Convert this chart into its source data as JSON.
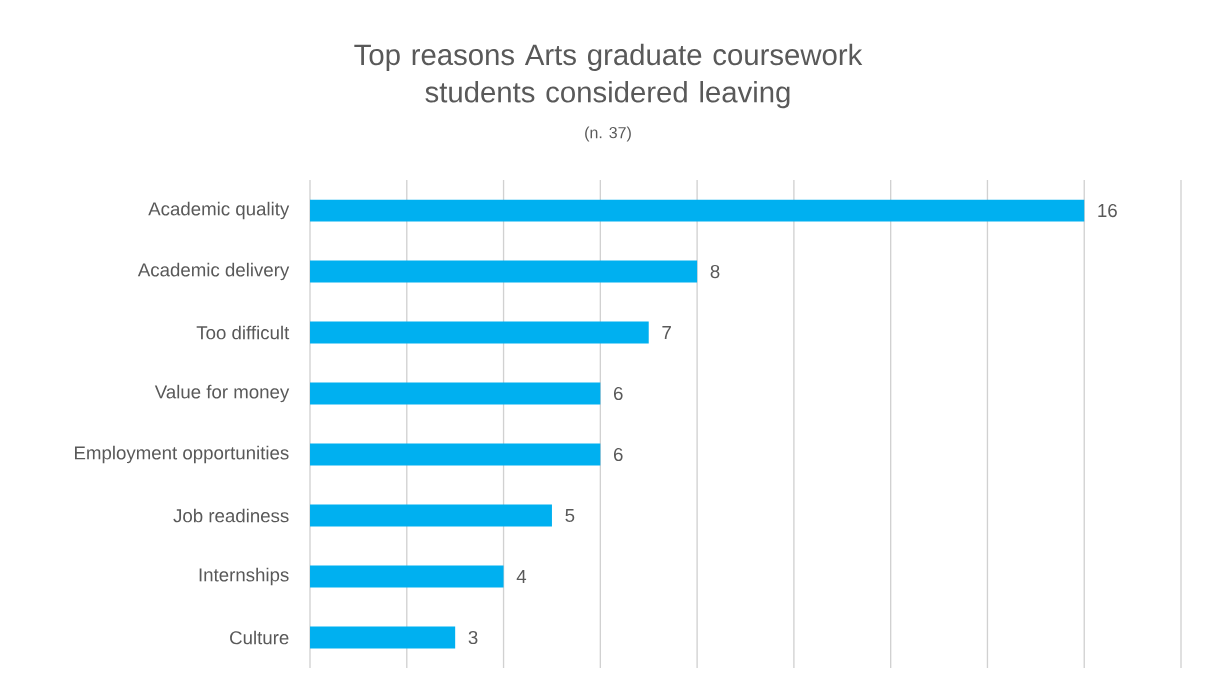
{
  "chart_data": {
    "type": "bar",
    "orientation": "horizontal",
    "title": "Top reasons Arts graduate coursework students considered leaving",
    "subtitle": "(n. 37)",
    "categories": [
      "Academic quality",
      "Academic delivery",
      "Too difficult",
      "Value for money",
      "Employment opportunities",
      "Job readiness",
      "Internships",
      "Culture"
    ],
    "values": [
      16,
      8,
      7,
      6,
      6,
      5,
      4,
      3
    ],
    "color": "#00b0f0",
    "xlim": [
      0,
      18
    ],
    "xticks": [
      {
        "value": 0,
        "label": null
      },
      {
        "value": 2,
        "label": null
      },
      {
        "value": 4,
        "label": null
      },
      {
        "value": 6,
        "label": null
      },
      {
        "value": 8,
        "label": null
      },
      {
        "value": 10,
        "label": null
      },
      {
        "value": 12,
        "label": null
      },
      {
        "value": 14,
        "label": null
      },
      {
        "value": 16,
        "label": null
      },
      {
        "value": 18,
        "label": null
      }
    ],
    "grid": "x",
    "tick_labels": "y",
    "data_labels": true
  }
}
